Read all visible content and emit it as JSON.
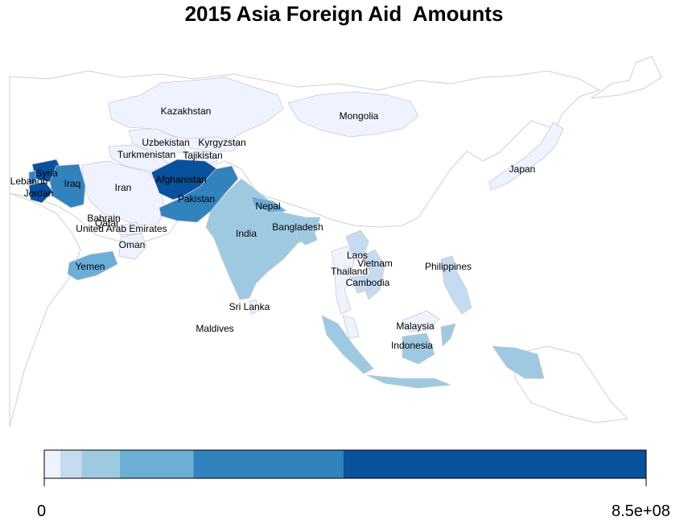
{
  "title": "2015 Asia Foreign Aid  Amounts",
  "palette": [
    "#eff3ff",
    "#c6dbef",
    "#9ecae1",
    "#6baed6",
    "#3182bd",
    "#08519c"
  ],
  "legend": {
    "min_label": "0",
    "max_label": "8.5e+08",
    "bin_edges": [
      0,
      0.025,
      0.058,
      0.118,
      0.233,
      0.467,
      0.94
    ]
  },
  "countries": [
    {
      "name": "Kazakhstan",
      "aid_class": 0
    },
    {
      "name": "Mongolia",
      "aid_class": 0
    },
    {
      "name": "Uzbekistan",
      "aid_class": 0
    },
    {
      "name": "Kyrgyzstan",
      "aid_class": 0
    },
    {
      "name": "Turkmenistan",
      "aid_class": 0
    },
    {
      "name": "Tajikistan",
      "aid_class": 0
    },
    {
      "name": "Syria",
      "aid_class": 5
    },
    {
      "name": "Lebanon",
      "aid_class": 4
    },
    {
      "name": "Jordan",
      "aid_class": 5
    },
    {
      "name": "Iraq",
      "aid_class": 4
    },
    {
      "name": "Iran",
      "aid_class": 0
    },
    {
      "name": "Afghanistan",
      "aid_class": 5
    },
    {
      "name": "Pakistan",
      "aid_class": 4
    },
    {
      "name": "Japan",
      "aid_class": 0
    },
    {
      "name": "Nepal",
      "aid_class": 3
    },
    {
      "name": "Bahrain",
      "aid_class": 0
    },
    {
      "name": "Qatar",
      "aid_class": 0
    },
    {
      "name": "United Arab Emirates",
      "aid_class": 0
    },
    {
      "name": "India",
      "aid_class": 2
    },
    {
      "name": "Bangladesh",
      "aid_class": 2
    },
    {
      "name": "Oman",
      "aid_class": 0
    },
    {
      "name": "Yemen",
      "aid_class": 3
    },
    {
      "name": "Laos",
      "aid_class": 1
    },
    {
      "name": "Vietnam",
      "aid_class": 1
    },
    {
      "name": "Philippines",
      "aid_class": 1
    },
    {
      "name": "Thailand",
      "aid_class": 0
    },
    {
      "name": "Cambodia",
      "aid_class": 1
    },
    {
      "name": "Sri Lanka",
      "aid_class": 0
    },
    {
      "name": "Maldives",
      "aid_class": 0
    },
    {
      "name": "Malaysia",
      "aid_class": 0
    },
    {
      "name": "Indonesia",
      "aid_class": 2
    }
  ]
}
